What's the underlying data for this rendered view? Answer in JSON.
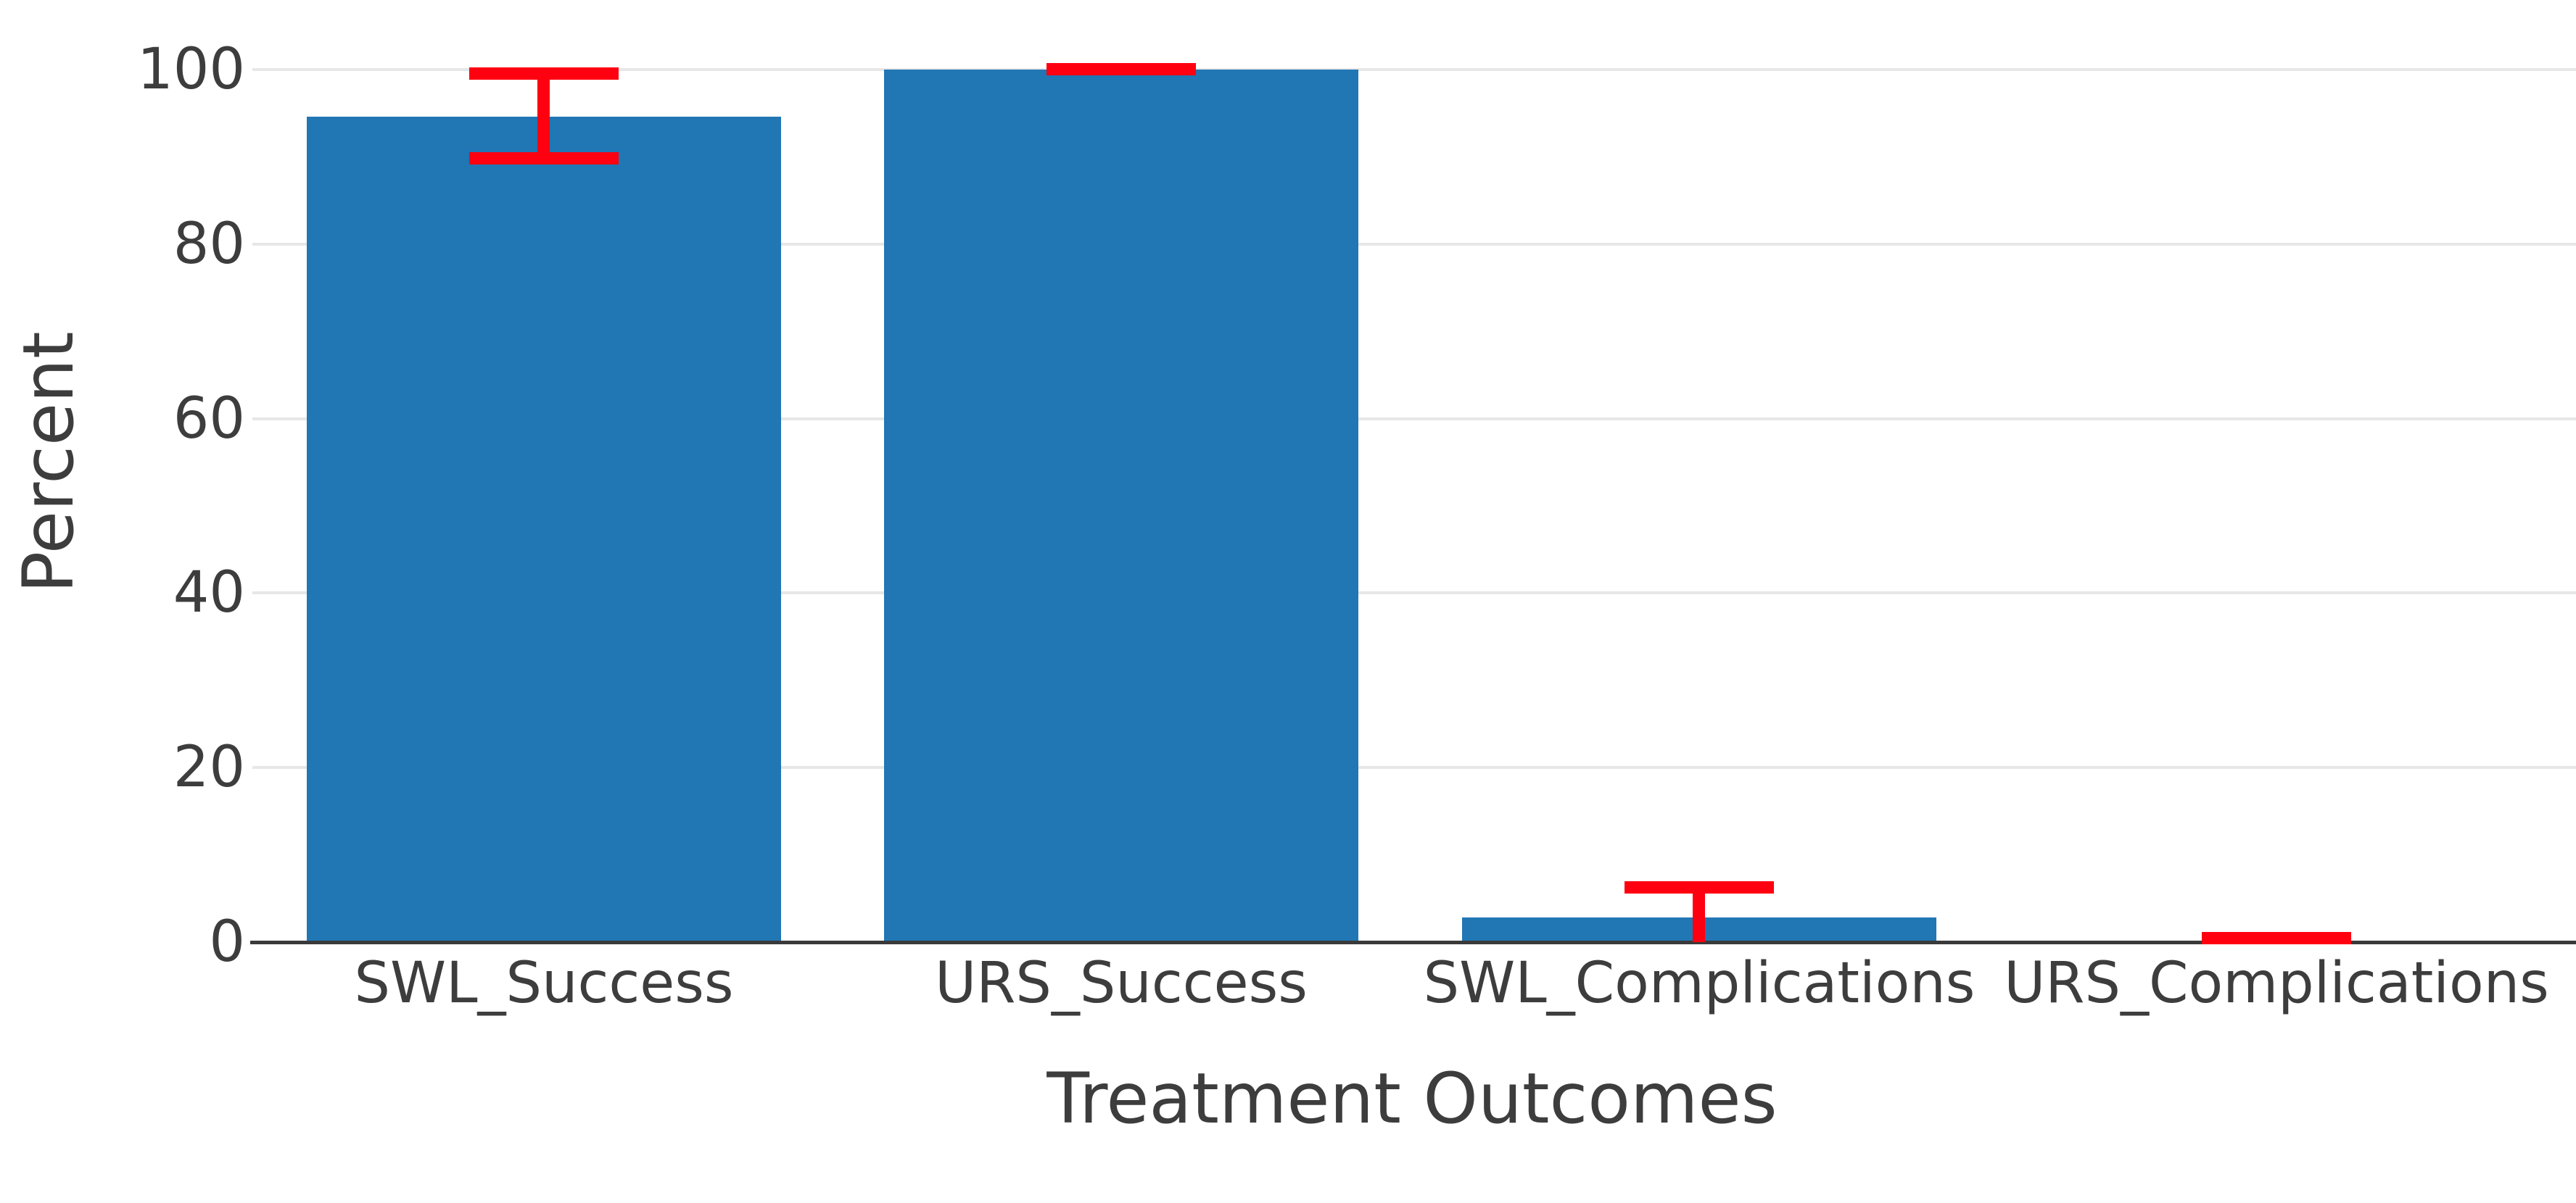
{
  "chart_data": {
    "type": "bar",
    "title": "",
    "xlabel": "Treatment Outcomes",
    "ylabel": "Percent",
    "categories": [
      "SWL_Success",
      "URS_Success",
      "SWL_Complications",
      "URS_Complications"
    ],
    "values": [
      94.6,
      100,
      2.8,
      0
    ],
    "error_high": [
      99.5,
      100,
      6.2,
      0.4
    ],
    "error_low": [
      89.8,
      99.9,
      0,
      0
    ],
    "error_bottom_cap_visible": [
      true,
      false,
      false,
      false
    ],
    "yticks": [
      0,
      20,
      40,
      60,
      80,
      100
    ],
    "ylim": [
      0,
      105
    ],
    "grid": "horizontal",
    "legend": "none",
    "colors": {
      "bar": "#2176b4",
      "error": "#ff0011",
      "text": "#3d3d3d",
      "grid": "#e7e7e7",
      "axis": "#3a3a3a",
      "background": "#ffffff"
    }
  }
}
